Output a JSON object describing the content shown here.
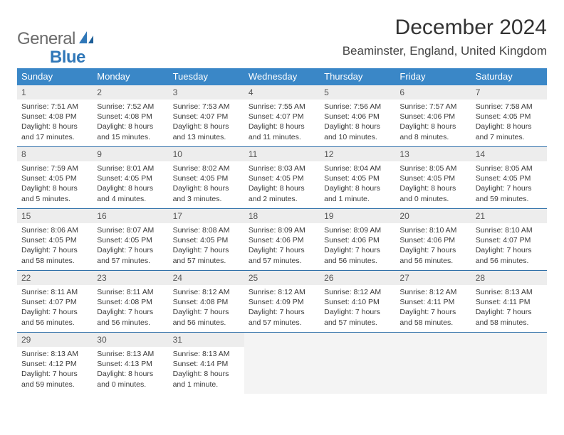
{
  "logo": {
    "text1": "General",
    "text2": "Blue"
  },
  "title": "December 2024",
  "location": "Beaminster, England, United Kingdom",
  "colors": {
    "header_bg": "#3a87c7",
    "week_divider": "#2f6fa8",
    "daynum_bg": "#ededed",
    "text": "#3a3a3a",
    "logo_gray": "#6b6b6b",
    "logo_blue": "#2f77b8"
  },
  "day_headers": [
    "Sunday",
    "Monday",
    "Tuesday",
    "Wednesday",
    "Thursday",
    "Friday",
    "Saturday"
  ],
  "weeks": [
    [
      {
        "n": "1",
        "sunrise": "Sunrise: 7:51 AM",
        "sunset": "Sunset: 4:08 PM",
        "d1": "Daylight: 8 hours",
        "d2": "and 17 minutes."
      },
      {
        "n": "2",
        "sunrise": "Sunrise: 7:52 AM",
        "sunset": "Sunset: 4:08 PM",
        "d1": "Daylight: 8 hours",
        "d2": "and 15 minutes."
      },
      {
        "n": "3",
        "sunrise": "Sunrise: 7:53 AM",
        "sunset": "Sunset: 4:07 PM",
        "d1": "Daylight: 8 hours",
        "d2": "and 13 minutes."
      },
      {
        "n": "4",
        "sunrise": "Sunrise: 7:55 AM",
        "sunset": "Sunset: 4:07 PM",
        "d1": "Daylight: 8 hours",
        "d2": "and 11 minutes."
      },
      {
        "n": "5",
        "sunrise": "Sunrise: 7:56 AM",
        "sunset": "Sunset: 4:06 PM",
        "d1": "Daylight: 8 hours",
        "d2": "and 10 minutes."
      },
      {
        "n": "6",
        "sunrise": "Sunrise: 7:57 AM",
        "sunset": "Sunset: 4:06 PM",
        "d1": "Daylight: 8 hours",
        "d2": "and 8 minutes."
      },
      {
        "n": "7",
        "sunrise": "Sunrise: 7:58 AM",
        "sunset": "Sunset: 4:05 PM",
        "d1": "Daylight: 8 hours",
        "d2": "and 7 minutes."
      }
    ],
    [
      {
        "n": "8",
        "sunrise": "Sunrise: 7:59 AM",
        "sunset": "Sunset: 4:05 PM",
        "d1": "Daylight: 8 hours",
        "d2": "and 5 minutes."
      },
      {
        "n": "9",
        "sunrise": "Sunrise: 8:01 AM",
        "sunset": "Sunset: 4:05 PM",
        "d1": "Daylight: 8 hours",
        "d2": "and 4 minutes."
      },
      {
        "n": "10",
        "sunrise": "Sunrise: 8:02 AM",
        "sunset": "Sunset: 4:05 PM",
        "d1": "Daylight: 8 hours",
        "d2": "and 3 minutes."
      },
      {
        "n": "11",
        "sunrise": "Sunrise: 8:03 AM",
        "sunset": "Sunset: 4:05 PM",
        "d1": "Daylight: 8 hours",
        "d2": "and 2 minutes."
      },
      {
        "n": "12",
        "sunrise": "Sunrise: 8:04 AM",
        "sunset": "Sunset: 4:05 PM",
        "d1": "Daylight: 8 hours",
        "d2": "and 1 minute."
      },
      {
        "n": "13",
        "sunrise": "Sunrise: 8:05 AM",
        "sunset": "Sunset: 4:05 PM",
        "d1": "Daylight: 8 hours",
        "d2": "and 0 minutes."
      },
      {
        "n": "14",
        "sunrise": "Sunrise: 8:05 AM",
        "sunset": "Sunset: 4:05 PM",
        "d1": "Daylight: 7 hours",
        "d2": "and 59 minutes."
      }
    ],
    [
      {
        "n": "15",
        "sunrise": "Sunrise: 8:06 AM",
        "sunset": "Sunset: 4:05 PM",
        "d1": "Daylight: 7 hours",
        "d2": "and 58 minutes."
      },
      {
        "n": "16",
        "sunrise": "Sunrise: 8:07 AM",
        "sunset": "Sunset: 4:05 PM",
        "d1": "Daylight: 7 hours",
        "d2": "and 57 minutes."
      },
      {
        "n": "17",
        "sunrise": "Sunrise: 8:08 AM",
        "sunset": "Sunset: 4:05 PM",
        "d1": "Daylight: 7 hours",
        "d2": "and 57 minutes."
      },
      {
        "n": "18",
        "sunrise": "Sunrise: 8:09 AM",
        "sunset": "Sunset: 4:06 PM",
        "d1": "Daylight: 7 hours",
        "d2": "and 57 minutes."
      },
      {
        "n": "19",
        "sunrise": "Sunrise: 8:09 AM",
        "sunset": "Sunset: 4:06 PM",
        "d1": "Daylight: 7 hours",
        "d2": "and 56 minutes."
      },
      {
        "n": "20",
        "sunrise": "Sunrise: 8:10 AM",
        "sunset": "Sunset: 4:06 PM",
        "d1": "Daylight: 7 hours",
        "d2": "and 56 minutes."
      },
      {
        "n": "21",
        "sunrise": "Sunrise: 8:10 AM",
        "sunset": "Sunset: 4:07 PM",
        "d1": "Daylight: 7 hours",
        "d2": "and 56 minutes."
      }
    ],
    [
      {
        "n": "22",
        "sunrise": "Sunrise: 8:11 AM",
        "sunset": "Sunset: 4:07 PM",
        "d1": "Daylight: 7 hours",
        "d2": "and 56 minutes."
      },
      {
        "n": "23",
        "sunrise": "Sunrise: 8:11 AM",
        "sunset": "Sunset: 4:08 PM",
        "d1": "Daylight: 7 hours",
        "d2": "and 56 minutes."
      },
      {
        "n": "24",
        "sunrise": "Sunrise: 8:12 AM",
        "sunset": "Sunset: 4:08 PM",
        "d1": "Daylight: 7 hours",
        "d2": "and 56 minutes."
      },
      {
        "n": "25",
        "sunrise": "Sunrise: 8:12 AM",
        "sunset": "Sunset: 4:09 PM",
        "d1": "Daylight: 7 hours",
        "d2": "and 57 minutes."
      },
      {
        "n": "26",
        "sunrise": "Sunrise: 8:12 AM",
        "sunset": "Sunset: 4:10 PM",
        "d1": "Daylight: 7 hours",
        "d2": "and 57 minutes."
      },
      {
        "n": "27",
        "sunrise": "Sunrise: 8:12 AM",
        "sunset": "Sunset: 4:11 PM",
        "d1": "Daylight: 7 hours",
        "d2": "and 58 minutes."
      },
      {
        "n": "28",
        "sunrise": "Sunrise: 8:13 AM",
        "sunset": "Sunset: 4:11 PM",
        "d1": "Daylight: 7 hours",
        "d2": "and 58 minutes."
      }
    ],
    [
      {
        "n": "29",
        "sunrise": "Sunrise: 8:13 AM",
        "sunset": "Sunset: 4:12 PM",
        "d1": "Daylight: 7 hours",
        "d2": "and 59 minutes."
      },
      {
        "n": "30",
        "sunrise": "Sunrise: 8:13 AM",
        "sunset": "Sunset: 4:13 PM",
        "d1": "Daylight: 8 hours",
        "d2": "and 0 minutes."
      },
      {
        "n": "31",
        "sunrise": "Sunrise: 8:13 AM",
        "sunset": "Sunset: 4:14 PM",
        "d1": "Daylight: 8 hours",
        "d2": "and 1 minute."
      },
      {
        "empty": true
      },
      {
        "empty": true
      },
      {
        "empty": true
      },
      {
        "empty": true
      }
    ]
  ]
}
